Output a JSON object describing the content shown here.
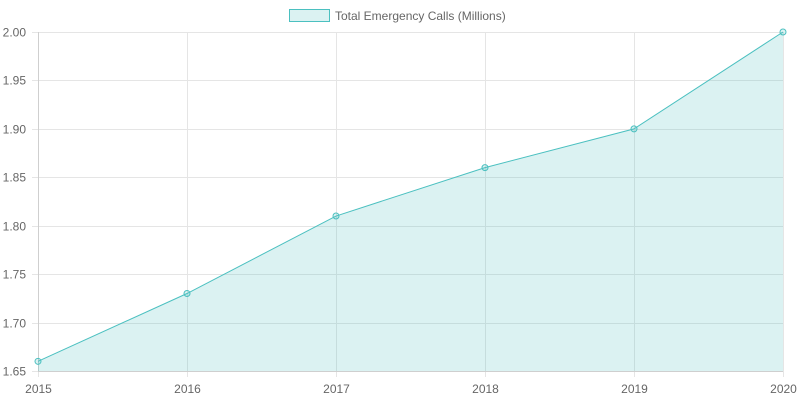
{
  "chart_data": {
    "type": "line",
    "categories": [
      "2015",
      "2016",
      "2017",
      "2018",
      "2019",
      "2020"
    ],
    "series": [
      {
        "name": "Total Emergency Calls (Millions)",
        "values": [
          1.66,
          1.73,
          1.81,
          1.86,
          1.9,
          2.0
        ],
        "fill": true
      }
    ],
    "ylim": [
      1.65,
      2.0
    ],
    "yticks": [
      "1.65",
      "1.70",
      "1.75",
      "1.80",
      "1.85",
      "1.90",
      "1.95",
      "2.00"
    ],
    "grid": true,
    "legend": "top",
    "colors": {
      "line": "#4bc0c0",
      "fill": "rgba(75,192,192,0.2)"
    }
  }
}
